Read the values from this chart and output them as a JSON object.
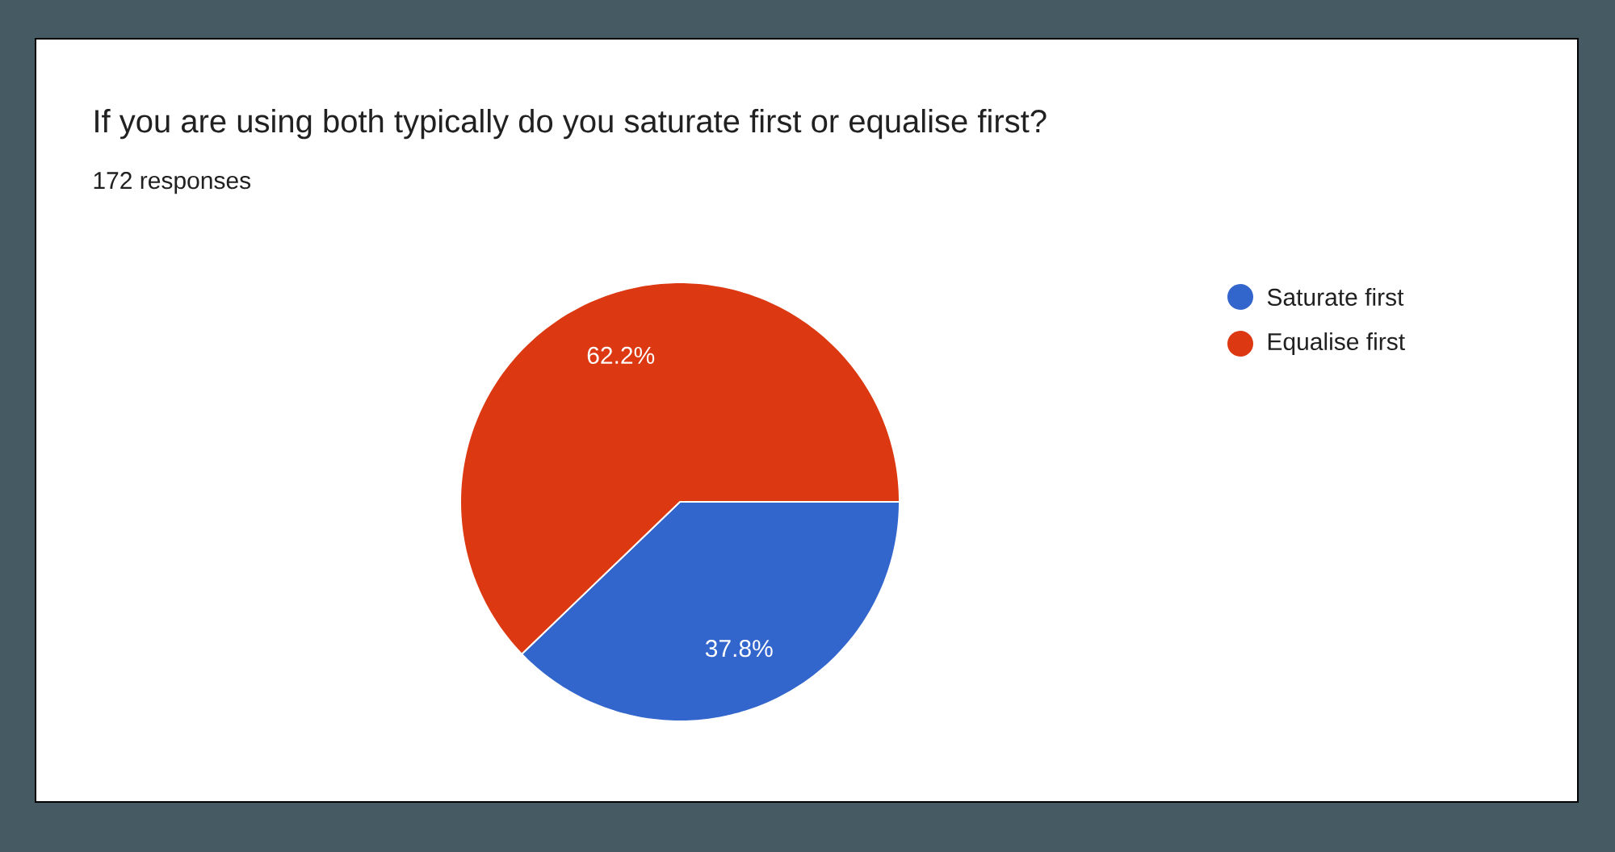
{
  "chart_data": {
    "type": "pie",
    "title": "If you are using both typically do you saturate first or equalise first?",
    "subtitle": "172 responses",
    "categories": [
      "Saturate first",
      "Equalise first"
    ],
    "values": [
      37.8,
      62.2
    ],
    "colors": [
      "#3366cc",
      "#dc3912"
    ],
    "value_labels": [
      "37.8%",
      "62.2%"
    ],
    "legend": "top right"
  }
}
